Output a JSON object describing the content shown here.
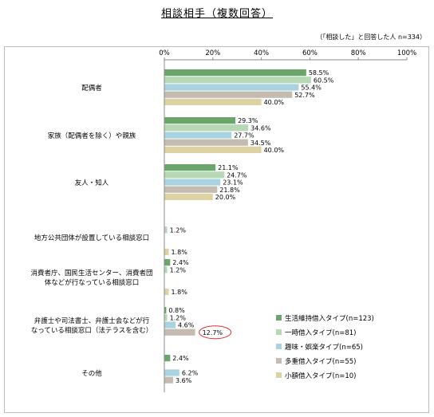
{
  "title": "相談相手（複数回答）",
  "note": "（「相談した」と回答した人 n=334）",
  "chart_data": {
    "type": "bar",
    "orientation": "horizontal",
    "title": "相談相手（複数回答）",
    "xlim": [
      0,
      100
    ],
    "x_ticks": [
      "0%",
      "20%",
      "40%",
      "60%",
      "80%",
      "100%"
    ],
    "grid": false,
    "legend_position": "bottom-right",
    "categories": [
      [
        "配偶者"
      ],
      [
        "家族（配偶者を除く）や親族"
      ],
      [
        "友人・知人"
      ],
      [
        "地方公共団体が設置している相談窓口"
      ],
      [
        "消費者庁、国民生活センター、消費者団",
        "体などが行なっている相談窓口"
      ],
      [
        "弁護士や司法書士、弁護士会などが行",
        "なっている相談窓口（法テラスを含む）"
      ],
      [
        "その他"
      ]
    ],
    "series": [
      {
        "name": "生活維持借入タイプ(n=123)",
        "color": "#6aa56a",
        "values": [
          58.5,
          29.3,
          21.1,
          0.0,
          2.4,
          0.8,
          2.4
        ]
      },
      {
        "name": "一時借入タイプ(n=81)",
        "color": "#b6d8b4",
        "values": [
          60.5,
          34.6,
          24.7,
          1.2,
          1.2,
          1.2,
          0.0
        ]
      },
      {
        "name": "趣味・娯楽タイプ(n=65)",
        "color": "#a9d3e1",
        "values": [
          55.4,
          27.7,
          23.1,
          0.0,
          0.0,
          4.6,
          6.2
        ]
      },
      {
        "name": "多重借入タイプ(n=55)",
        "color": "#c4bcb0",
        "values": [
          52.7,
          34.5,
          21.8,
          0.0,
          0.0,
          12.7,
          3.6
        ]
      },
      {
        "name": "小額借入タイプ(n=10)",
        "color": "#ddd2a2",
        "values": [
          40.0,
          40.0,
          20.0,
          1.8,
          1.8,
          0.0,
          0.0
        ]
      }
    ],
    "value_labels": [
      [
        "58.5%",
        "29.3%",
        "21.1%",
        "",
        "2.4%",
        "0.8%",
        "2.4%"
      ],
      [
        "60.5%",
        "34.6%",
        "24.7%",
        "1.2%",
        "1.2%",
        "1.2%",
        ""
      ],
      [
        "55.4%",
        "27.7%",
        "23.1%",
        "",
        "",
        "4.6%",
        "6.2%"
      ],
      [
        "52.7%",
        "34.5%",
        "21.8%",
        "",
        "",
        "12.7%",
        "3.6%"
      ],
      [
        "40.0%",
        "40.0%",
        "20.0%",
        "1.8%",
        "1.8%",
        "",
        ""
      ]
    ],
    "highlight": {
      "series": 3,
      "category": 5
    }
  }
}
